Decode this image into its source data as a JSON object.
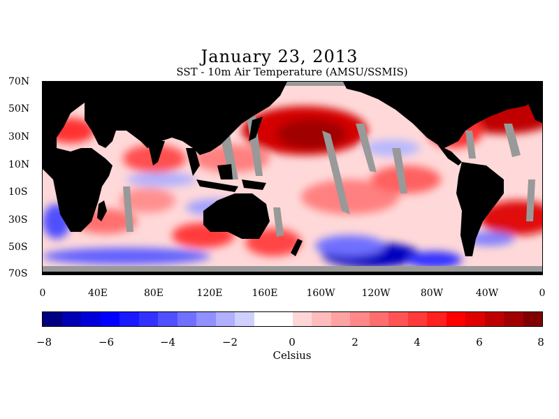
{
  "title": "January 23, 2013",
  "subtitle": "SST - 10m Air Temperature (AMSU/SSMIS)",
  "map": {
    "lat_labels": [
      "70N",
      "50N",
      "30N",
      "10N",
      "10S",
      "30S",
      "50S",
      "70S"
    ],
    "lon_labels": [
      "0",
      "40E",
      "80E",
      "120E",
      "160E",
      "160W",
      "120W",
      "80W",
      "40W",
      "0"
    ],
    "land_color": "#000000",
    "missing_color": "#999999"
  },
  "colorbar": {
    "tick_labels": [
      "−8",
      "−6",
      "−4",
      "−2",
      "0",
      "2",
      "4",
      "6",
      "8"
    ],
    "unit": "Celsius",
    "range": [
      -8,
      8
    ],
    "colors": [
      "#000080",
      "#0000b4",
      "#0000d8",
      "#0000ff",
      "#1a1aff",
      "#3232ff",
      "#5050ff",
      "#7070ff",
      "#9090ff",
      "#b0b0ff",
      "#d0d0ff",
      "#ffffff",
      "#ffffff",
      "#ffd6d6",
      "#ffbcbc",
      "#ffa2a2",
      "#ff8888",
      "#ff6e6e",
      "#ff5454",
      "#ff3a3a",
      "#ff2020",
      "#ff0000",
      "#e00000",
      "#c00000",
      "#a00000",
      "#800000"
    ]
  }
}
